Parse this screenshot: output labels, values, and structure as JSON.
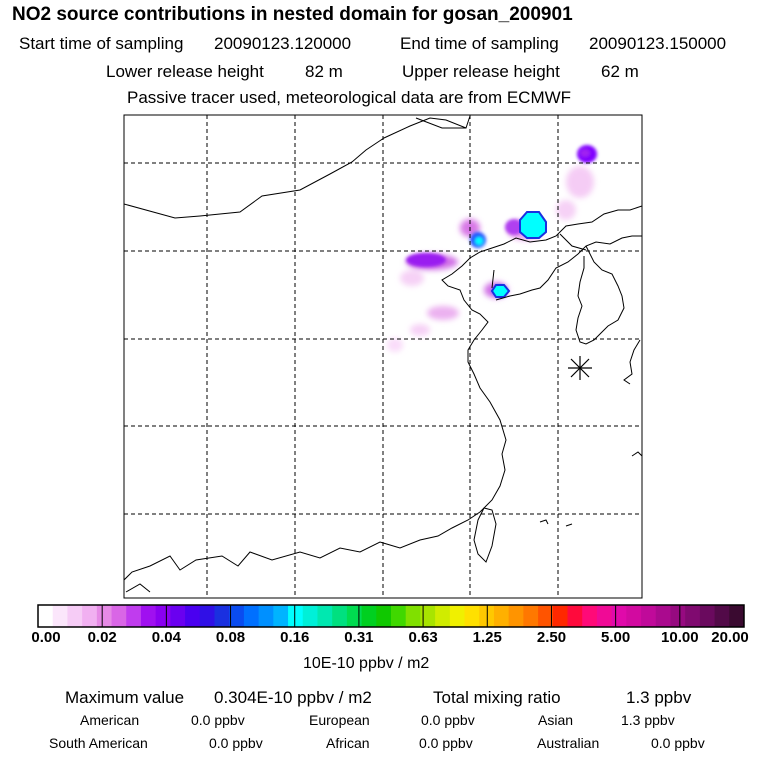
{
  "header": {
    "title": "NO2 source contributions in nested domain for gosan_200901",
    "start_label": "Start time of sampling",
    "start_value": "20090123.120000",
    "end_label": "End time of sampling",
    "end_value": "20090123.150000",
    "lower_label": "Lower release height",
    "lower_value": "82 m",
    "upper_label": "Upper release height",
    "upper_value": "62 m",
    "note": "Passive tracer used, meteorological data are from ECMWF"
  },
  "colorbar": {
    "ticks": [
      "0.00",
      "0.02",
      "0.04",
      "0.08",
      "0.16",
      "0.31",
      "0.63",
      "1.25",
      "2.50",
      "5.00",
      "10.00",
      "20.00"
    ],
    "unit": "10E-10 ppbv / m2",
    "colors": [
      "#ffffff",
      "#fbe6fb",
      "#f6ccf6",
      "#f1b0f1",
      "#e68ae6",
      "#d966e6",
      "#c03cee",
      "#a010f0",
      "#8a00f0",
      "#6a00f0",
      "#4a00f0",
      "#3010e6",
      "#1a30e0",
      "#0a4cf0",
      "#0070ff",
      "#0090ff",
      "#00b4ff",
      "#00ffff",
      "#00f0d8",
      "#00e8b0",
      "#00e080",
      "#00dc50",
      "#00d020",
      "#10c800",
      "#40d800",
      "#80e000",
      "#a8e400",
      "#d0ec00",
      "#f0f000",
      "#ffe000",
      "#ffc800",
      "#ffb000",
      "#ff9400",
      "#ff7800",
      "#ff5400",
      "#ff2800",
      "#ff0a3c",
      "#ff0a78",
      "#f00a96",
      "#e00aaa",
      "#d20aa0",
      "#c00a9a",
      "#aa0a8e",
      "#960a80",
      "#800a70",
      "#6a0a5e",
      "#520a48",
      "#3a0a30"
    ]
  },
  "stats": {
    "max_label": "Maximum value",
    "max_value": "0.304E-10 ppbv / m2",
    "total_label": "Total mixing ratio",
    "total_value": "1.3 ppbv",
    "regions": [
      {
        "name": "American",
        "value": "0.0 ppbv"
      },
      {
        "name": "European",
        "value": "0.0 ppbv"
      },
      {
        "name": "Asian",
        "value": "1.3 ppbv"
      },
      {
        "name": "South American",
        "value": "0.0 ppbv"
      },
      {
        "name": "African",
        "value": "0.0 ppbv"
      },
      {
        "name": "Australian",
        "value": "0.0 ppbv"
      }
    ]
  },
  "map": {
    "receptor_marker": "asterisk-icon",
    "blob_colors": {
      "faint": "#f4c6f4",
      "light": "#e8a0ec",
      "purple": "#a020f0",
      "violet": "#8000ff",
      "blue": "#2050ff",
      "cyan": "#00ffff"
    }
  }
}
